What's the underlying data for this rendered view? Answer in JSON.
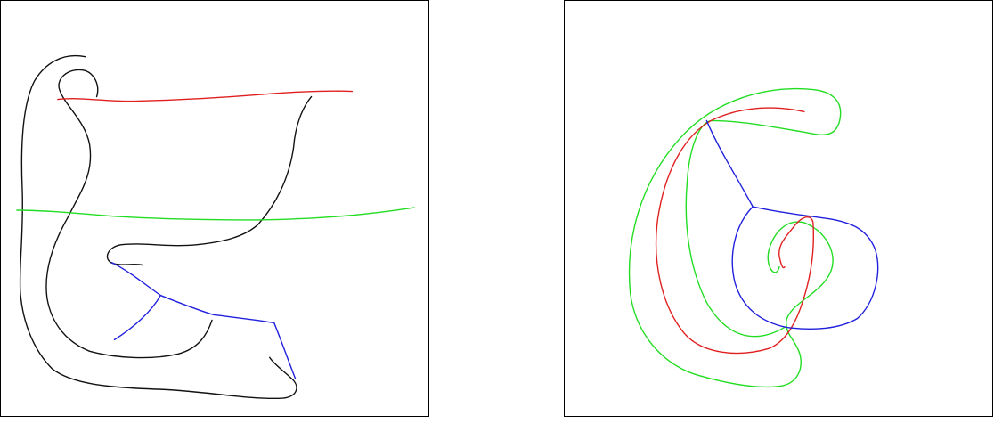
{
  "colors": {
    "background": "#ffffff",
    "frame": "#000000",
    "black_stroke": "#111111",
    "red_stroke": "#e02020",
    "green_stroke": "#22dd22",
    "blue_stroke": "#2020dd"
  },
  "panels": [
    {
      "name": "left",
      "strokes": [
        "black",
        "black",
        "red",
        "green",
        "blue"
      ]
    },
    {
      "name": "right",
      "strokes": [
        "green",
        "red",
        "blue"
      ]
    }
  ]
}
